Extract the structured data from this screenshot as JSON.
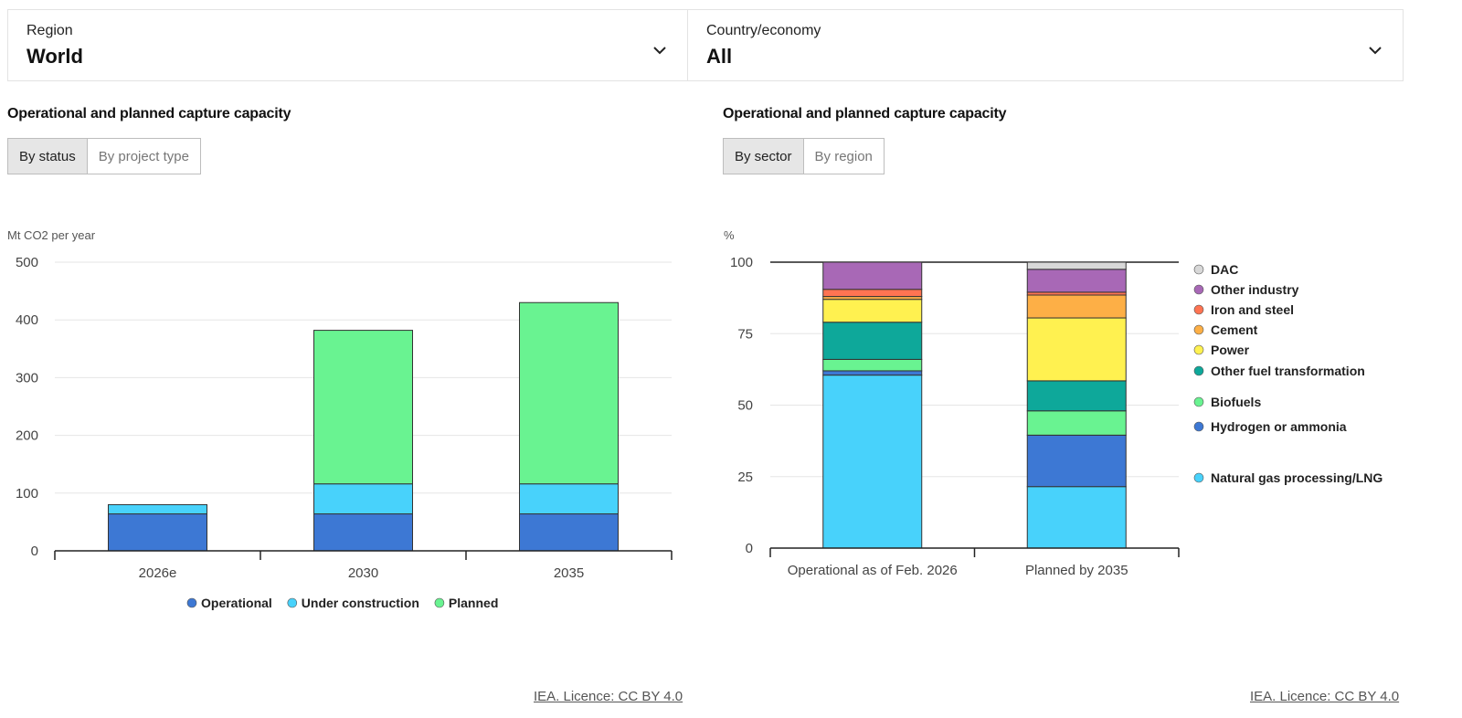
{
  "filters": {
    "region": {
      "label": "Region",
      "value": "World"
    },
    "country": {
      "label": "Country/economy",
      "value": "All"
    }
  },
  "left_panel": {
    "title": "Operational and planned capture capacity",
    "toggle": [
      "By status",
      "By project type"
    ],
    "active_toggle": "By status",
    "licence": "IEA. Licence: CC BY 4.0"
  },
  "right_panel": {
    "title": "Operational and planned capture capacity",
    "toggle": [
      "By sector",
      "By region"
    ],
    "active_toggle": "By sector",
    "licence": "IEA. Licence: CC BY 4.0"
  },
  "chart_data": [
    {
      "type": "bar",
      "stacked": true,
      "unit_label": "Mt CO2 per year",
      "categories": [
        "2026e",
        "2030",
        "2035"
      ],
      "series": [
        {
          "name": "Operational",
          "color": "#3d78d4",
          "values": [
            64,
            64,
            64
          ]
        },
        {
          "name": "Under construction",
          "color": "#48d2fb",
          "values": [
            16,
            52,
            52
          ]
        },
        {
          "name": "Planned",
          "color": "#69f391",
          "values": [
            0,
            266,
            314
          ]
        }
      ],
      "ylim": [
        0,
        500
      ],
      "yticks": [
        0,
        100,
        200,
        300,
        400,
        500
      ],
      "grid": true,
      "legend_position": "bottom"
    },
    {
      "type": "bar",
      "stacked": true,
      "percent": true,
      "unit_label": "%",
      "categories": [
        "Operational as of Feb. 2026",
        "Planned by 2035"
      ],
      "series": [
        {
          "name": "Natural gas processing/LNG",
          "color": "#48d2fb",
          "values": [
            60.5,
            21.5
          ]
        },
        {
          "name": "Hydrogen or ammonia",
          "color": "#3d78d4",
          "values": [
            1.5,
            18
          ]
        },
        {
          "name": "Biofuels",
          "color": "#69f391",
          "values": [
            4,
            8.5
          ]
        },
        {
          "name": "Other fuel transformation",
          "color": "#0ea89a",
          "values": [
            13,
            10.5
          ]
        },
        {
          "name": "Power",
          "color": "#fff150",
          "values": [
            8,
            22
          ]
        },
        {
          "name": "Cement",
          "color": "#fdaf46",
          "values": [
            1,
            8
          ]
        },
        {
          "name": "Iron and steel",
          "color": "#ff7452",
          "values": [
            2.5,
            1
          ]
        },
        {
          "name": "Other industry",
          "color": "#a868b6",
          "values": [
            9.5,
            8
          ]
        },
        {
          "name": "DAC",
          "color": "#d8d8d8",
          "values": [
            0,
            2.5
          ]
        }
      ],
      "ylim": [
        0,
        100
      ],
      "yticks": [
        0,
        25,
        50,
        75,
        100
      ],
      "grid": true,
      "legend_position": "right"
    }
  ]
}
